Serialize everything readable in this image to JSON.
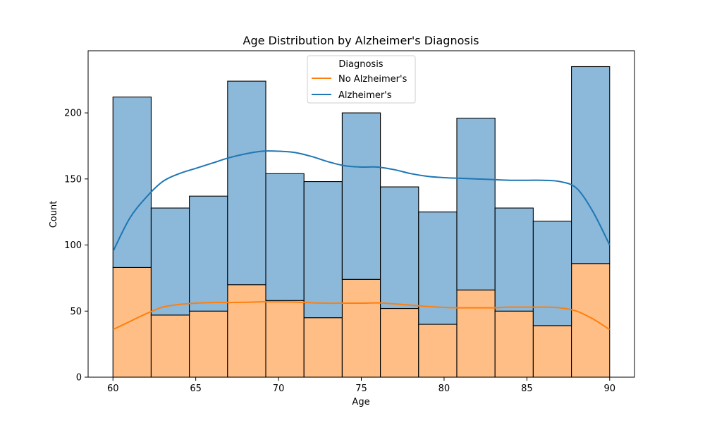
{
  "chart_data": {
    "type": "bar",
    "title": "Age Distribution by Alzheimer's Diagnosis",
    "xlabel": "Age",
    "ylabel": "Count",
    "xlim": [
      58.5,
      91.5
    ],
    "ylim": [
      0,
      247
    ],
    "xticks": [
      60,
      65,
      70,
      75,
      80,
      85,
      90
    ],
    "yticks": [
      0,
      50,
      100,
      150,
      200
    ],
    "bin_edges": [
      60,
      62.3077,
      64.6154,
      66.9231,
      69.2308,
      71.5385,
      73.8462,
      76.1538,
      78.4615,
      80.7692,
      83.0769,
      85.3846,
      87.6923,
      90
    ],
    "stacked": true,
    "series": [
      {
        "name": "No Alzheimer's",
        "color": "#ffbe86",
        "line_color": "#ff7f0e",
        "values": [
          83,
          47,
          50,
          70,
          58,
          45,
          74,
          52,
          40,
          66,
          50,
          39,
          86
        ],
        "kde": {
          "x": [
            60,
            61,
            62,
            63,
            64,
            65,
            66,
            67,
            68,
            69,
            70,
            71,
            72,
            73,
            74,
            75,
            76,
            77,
            78,
            79,
            80,
            81,
            82,
            83,
            84,
            85,
            86,
            87,
            88,
            89,
            90
          ],
          "y": [
            36,
            42,
            48,
            53,
            55,
            56,
            56.5,
            56.5,
            56.7,
            57,
            57,
            56.8,
            56.3,
            56,
            56,
            56,
            56.2,
            55.5,
            54.5,
            53.5,
            52.8,
            52.5,
            52.5,
            52.5,
            53,
            53,
            53,
            52.5,
            50,
            44,
            36
          ]
        }
      },
      {
        "name": "Alzheimer's",
        "color": "#8cb8d9",
        "line_color": "#1f77b4",
        "values": [
          129,
          81,
          87,
          154,
          96,
          103,
          126,
          92,
          85,
          130,
          78,
          79,
          149
        ],
        "kde": {
          "x": [
            60,
            61,
            62,
            63,
            64,
            65,
            66,
            67,
            68,
            69,
            70,
            71,
            72,
            73,
            74,
            75,
            76,
            77,
            78,
            79,
            80,
            81,
            82,
            83,
            84,
            85,
            86,
            87,
            88,
            89,
            90
          ],
          "y": [
            95,
            120,
            136,
            148,
            154,
            158,
            162,
            166,
            169,
            171,
            171,
            170,
            167,
            163,
            160,
            159,
            159,
            157,
            154,
            152,
            151,
            150.5,
            150,
            149.5,
            149,
            149,
            149,
            148,
            143,
            125,
            100
          ]
        }
      }
    ],
    "legend": {
      "title": "Diagnosis",
      "placement": "top-center",
      "entries": [
        "No Alzheimer's",
        "Alzheimer's"
      ]
    },
    "grid": false
  }
}
